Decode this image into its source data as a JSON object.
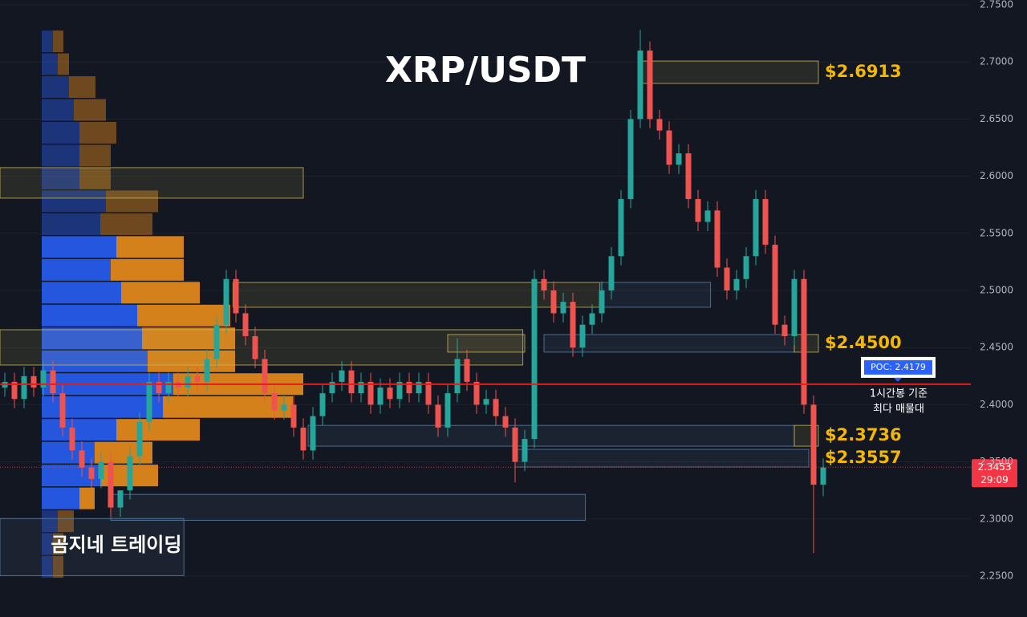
{
  "chart_data": {
    "type": "candlestick",
    "title": "XRP/USDT",
    "watermark": "곰지네 트레이딩",
    "up_color": "#26a69a",
    "down_color": "#ef5350",
    "grid": true,
    "ylim": [
      2.25,
      2.75
    ],
    "yticks": [
      {
        "value": 2.25,
        "label": "2.2500"
      },
      {
        "value": 2.3,
        "label": "2.3000"
      },
      {
        "value": 2.35,
        "label": "2.3500"
      },
      {
        "value": 2.4,
        "label": "2.4000"
      },
      {
        "value": 2.45,
        "label": "2.4500"
      },
      {
        "value": 2.5,
        "label": "2.5000"
      },
      {
        "value": 2.55,
        "label": "2.5500"
      },
      {
        "value": 2.6,
        "label": "2.6000"
      },
      {
        "value": 2.65,
        "label": "2.6500"
      },
      {
        "value": 2.7,
        "label": "2.7000"
      },
      {
        "value": 2.75,
        "label": "2.7500"
      }
    ],
    "open": [
      2.415,
      2.42,
      2.405,
      2.425,
      2.415,
      2.43,
      2.41,
      2.38,
      2.36,
      2.345,
      2.335,
      2.35,
      2.31,
      2.325,
      2.355,
      2.385,
      2.42,
      2.41,
      2.42,
      2.415,
      2.425,
      2.42,
      2.44,
      2.47,
      2.51,
      2.48,
      2.46,
      2.44,
      2.41,
      2.395,
      2.4,
      2.38,
      2.36,
      2.39,
      2.41,
      2.42,
      2.43,
      2.41,
      2.42,
      2.4,
      2.415,
      2.405,
      2.42,
      2.41,
      2.42,
      2.4,
      2.38,
      2.41,
      2.44,
      2.42,
      2.4,
      2.405,
      2.39,
      2.38,
      2.35,
      2.37,
      2.51,
      2.5,
      2.48,
      2.49,
      2.45,
      2.47,
      2.48,
      2.5,
      2.53,
      2.58,
      2.65,
      2.71,
      2.65,
      2.64,
      2.61,
      2.62,
      2.58,
      2.56,
      2.57,
      2.52,
      2.5,
      2.51,
      2.53,
      2.58,
      2.54,
      2.47,
      2.46,
      2.51,
      2.4,
      2.33
    ],
    "high": [
      2.428,
      2.428,
      2.433,
      2.433,
      2.438,
      2.438,
      2.418,
      2.388,
      2.368,
      2.353,
      2.358,
      2.358,
      2.325,
      2.363,
      2.393,
      2.428,
      2.428,
      2.428,
      2.428,
      2.433,
      2.433,
      2.448,
      2.478,
      2.518,
      2.518,
      2.488,
      2.468,
      2.448,
      2.418,
      2.408,
      2.408,
      2.388,
      2.398,
      2.418,
      2.428,
      2.438,
      2.438,
      2.428,
      2.428,
      2.423,
      2.423,
      2.428,
      2.428,
      2.428,
      2.428,
      2.408,
      2.418,
      2.458,
      2.448,
      2.428,
      2.413,
      2.413,
      2.398,
      2.388,
      2.378,
      2.518,
      2.518,
      2.508,
      2.498,
      2.498,
      2.478,
      2.488,
      2.508,
      2.538,
      2.588,
      2.658,
      2.728,
      2.718,
      2.658,
      2.648,
      2.628,
      2.628,
      2.588,
      2.578,
      2.578,
      2.528,
      2.518,
      2.538,
      2.588,
      2.588,
      2.548,
      2.478,
      2.518,
      2.518,
      2.408,
      2.353
    ],
    "low": [
      2.407,
      2.397,
      2.397,
      2.407,
      2.407,
      2.402,
      2.372,
      2.352,
      2.337,
      2.327,
      2.327,
      2.302,
      2.302,
      2.317,
      2.347,
      2.377,
      2.402,
      2.402,
      2.407,
      2.407,
      2.412,
      2.412,
      2.432,
      2.462,
      2.472,
      2.452,
      2.432,
      2.402,
      2.387,
      2.387,
      2.372,
      2.352,
      2.352,
      2.382,
      2.402,
      2.412,
      2.402,
      2.402,
      2.392,
      2.392,
      2.397,
      2.397,
      2.402,
      2.402,
      2.392,
      2.372,
      2.372,
      2.402,
      2.412,
      2.392,
      2.392,
      2.382,
      2.372,
      2.332,
      2.342,
      2.362,
      2.492,
      2.472,
      2.472,
      2.442,
      2.442,
      2.462,
      2.472,
      2.492,
      2.522,
      2.572,
      2.642,
      2.642,
      2.632,
      2.602,
      2.602,
      2.572,
      2.552,
      2.552,
      2.512,
      2.492,
      2.492,
      2.502,
      2.522,
      2.532,
      2.462,
      2.452,
      2.452,
      2.392,
      2.27,
      2.32
    ],
    "close": [
      2.42,
      2.405,
      2.425,
      2.415,
      2.43,
      2.41,
      2.38,
      2.36,
      2.345,
      2.335,
      2.35,
      2.31,
      2.325,
      2.355,
      2.385,
      2.42,
      2.41,
      2.42,
      2.415,
      2.425,
      2.42,
      2.44,
      2.47,
      2.51,
      2.48,
      2.46,
      2.44,
      2.41,
      2.395,
      2.4,
      2.38,
      2.36,
      2.39,
      2.41,
      2.42,
      2.43,
      2.41,
      2.42,
      2.4,
      2.415,
      2.405,
      2.42,
      2.41,
      2.42,
      2.4,
      2.38,
      2.41,
      2.44,
      2.42,
      2.4,
      2.405,
      2.39,
      2.38,
      2.35,
      2.37,
      2.51,
      2.5,
      2.48,
      2.49,
      2.45,
      2.47,
      2.48,
      2.5,
      2.53,
      2.58,
      2.65,
      2.71,
      2.65,
      2.64,
      2.61,
      2.62,
      2.58,
      2.56,
      2.57,
      2.52,
      2.5,
      2.51,
      2.53,
      2.58,
      2.54,
      2.47,
      2.46,
      2.51,
      2.4,
      2.33,
      2.345
    ],
    "volume_profile": {
      "bins": [
        2.7275,
        2.7075,
        2.6875,
        2.6675,
        2.6475,
        2.6275,
        2.6075,
        2.5875,
        2.5675,
        2.5475,
        2.5275,
        2.5075,
        2.4875,
        2.4675,
        2.4475,
        2.4275,
        2.4075,
        2.3875,
        2.3675,
        2.3475,
        2.3275,
        2.3075,
        2.2875,
        2.2675,
        2.2475
      ],
      "buy": [
        14,
        20,
        34,
        40,
        47,
        47,
        47,
        80,
        73,
        93,
        86,
        99,
        119,
        125,
        132,
        164,
        151,
        93,
        66,
        73,
        47,
        20,
        14,
        14
      ],
      "sell": [
        13,
        14,
        33,
        40,
        46,
        39,
        39,
        65,
        65,
        84,
        91,
        98,
        116,
        116,
        109,
        162,
        162,
        104,
        72,
        72,
        19,
        20,
        13,
        13
      ],
      "value_area": [
        2.3075,
        2.5475
      ],
      "buy_color": "#2962ff",
      "sell_color": "#f7931a"
    },
    "zones": [
      {
        "low": 2.6812,
        "high": 2.7008,
        "start": 66,
        "end": 84.5,
        "color": "#c9b458",
        "label": "$2.6913"
      },
      {
        "low": 2.5808,
        "high": 2.6075,
        "start": -0.5,
        "end": 31,
        "color": "#c9b458"
      },
      {
        "low": 2.4853,
        "high": 2.507,
        "start": 23.7,
        "end": 61.8,
        "color": "#c9b458"
      },
      {
        "low": 2.4853,
        "high": 2.507,
        "start": 61.8,
        "end": 73.3,
        "color": "#5b7fa8"
      },
      {
        "low": 2.4347,
        "high": 2.4656,
        "start": -0.5,
        "end": 53.8,
        "color": "#c9b458"
      },
      {
        "low": 2.446,
        "high": 2.4614,
        "start": 46,
        "end": 54,
        "color": "#c9b458"
      },
      {
        "low": 2.446,
        "high": 2.4614,
        "start": 56,
        "end": 82,
        "color": "#5b7fa8"
      },
      {
        "low": 2.446,
        "high": 2.4614,
        "start": 82,
        "end": 84.5,
        "color": "#c9b458",
        "label": "$2.4500"
      },
      {
        "low": 2.3637,
        "high": 2.3819,
        "start": 31.5,
        "end": 82,
        "color": "#5b7fa8"
      },
      {
        "low": 2.3637,
        "high": 2.3819,
        "start": 82,
        "end": 84.5,
        "color": "#c9b458",
        "label": "$2.3736"
      },
      {
        "low": 2.3455,
        "high": 2.3609,
        "start": 53,
        "end": 83.5,
        "color": "#5b7fa8",
        "label": "$2.3557"
      },
      {
        "low": 2.2988,
        "high": 2.3215,
        "start": 11,
        "end": 60.3,
        "color": "#5b7fa8"
      },
      {
        "low": 2.2504,
        "high": 2.3004,
        "start": -0.5,
        "end": 18.6,
        "color": "#5b7fa8"
      }
    ],
    "poc": {
      "value": 2.4179,
      "label": "POC: 2.4179",
      "note": [
        "1시간봉 기준",
        "최다 매물대"
      ],
      "color": "#e01e1e"
    },
    "last_price": {
      "value": 2.3453,
      "label": "2.3453",
      "countdown": "29:09"
    }
  }
}
